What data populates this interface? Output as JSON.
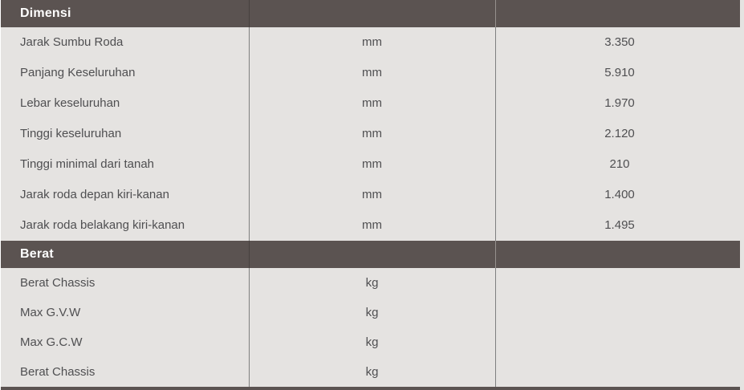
{
  "theme": {
    "header_bg": "#5b5351",
    "header_text": "#ffffff",
    "row_bg": "#e5e3e1",
    "divider": "#7f7f7f",
    "text": "#4f4f51"
  },
  "table": {
    "sections": [
      {
        "title": "Dimensi",
        "rows": [
          {
            "label": "Jarak Sumbu Roda",
            "unit": "mm",
            "value": "3.350"
          },
          {
            "label": "Panjang Keseluruhan",
            "unit": "mm",
            "value": "5.910"
          },
          {
            "label": "Lebar keseluruhan",
            "unit": "mm",
            "value": "1.970"
          },
          {
            "label": "Tinggi keseluruhan",
            "unit": "mm",
            "value": "2.120"
          },
          {
            "label": "Tinggi minimal dari tanah",
            "unit": "mm",
            "value": "210"
          },
          {
            "label": "Jarak roda depan kiri-kanan",
            "unit": "mm",
            "value": "1.400"
          },
          {
            "label": "Jarak roda belakang kiri-kanan",
            "unit": "mm",
            "value": "1.495"
          }
        ]
      },
      {
        "title": "Berat",
        "rows": [
          {
            "label": "Berat Chassis",
            "unit": "kg",
            "value": ""
          },
          {
            "label": "Max G.V.W",
            "unit": "kg",
            "value": ""
          },
          {
            "label": "Max G.C.W",
            "unit": "kg",
            "value": ""
          },
          {
            "label": "Berat Chassis",
            "unit": "kg",
            "value": ""
          }
        ]
      }
    ]
  }
}
